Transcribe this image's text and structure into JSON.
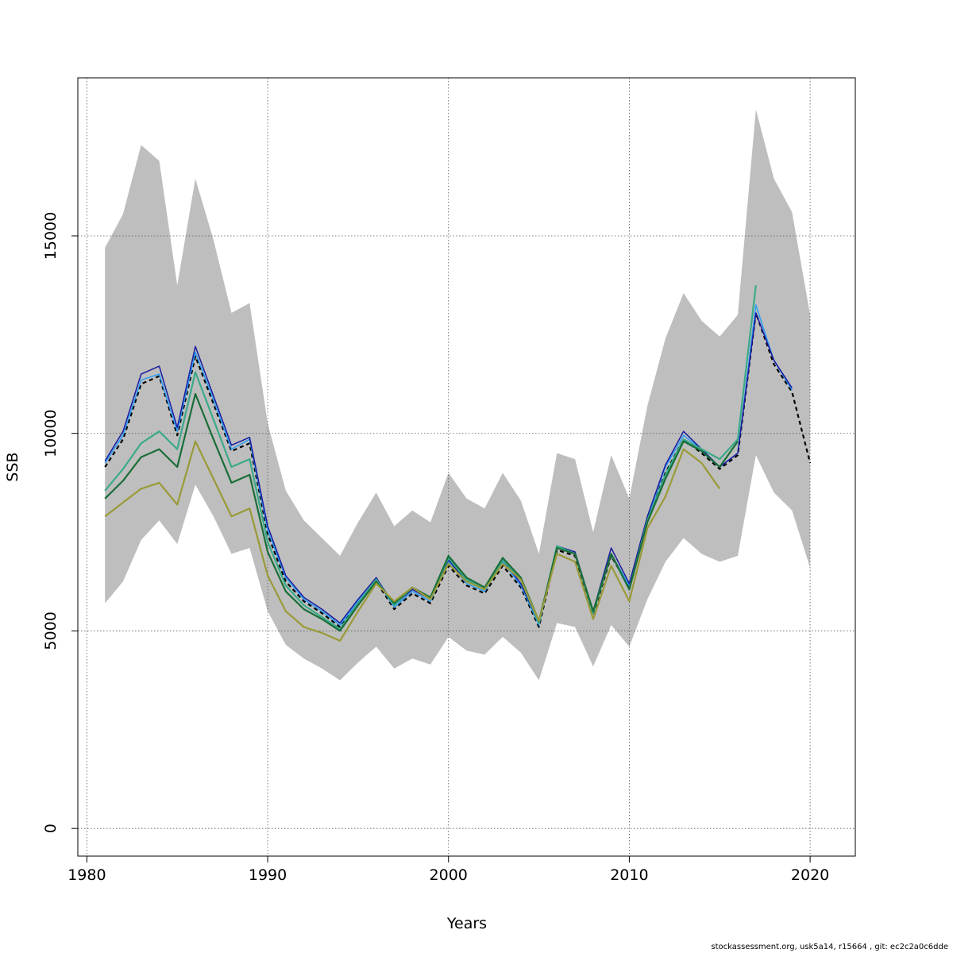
{
  "chart_data": {
    "type": "line",
    "title": "",
    "xlabel": "Years",
    "ylabel": "SSB",
    "xlim": [
      1979.5,
      2022.5
    ],
    "ylim": [
      -700,
      19000
    ],
    "x_ticks": [
      1980,
      1990,
      2000,
      2010,
      2020
    ],
    "y_ticks": [
      0,
      5000,
      10000,
      15000
    ],
    "grid": true,
    "band": {
      "x": [
        1981,
        1982,
        1983,
        1984,
        1985,
        1986,
        1987,
        1988,
        1989,
        1990,
        1991,
        1992,
        1993,
        1994,
        1995,
        1996,
        1997,
        1998,
        1999,
        2000,
        2001,
        2002,
        2003,
        2004,
        2005,
        2006,
        2007,
        2008,
        2009,
        2010,
        2011,
        2012,
        2013,
        2014,
        2015,
        2016,
        2017,
        2018,
        2019,
        2020
      ],
      "upper": [
        14700,
        15550,
        17300,
        16900,
        13750,
        16450,
        14900,
        13050,
        13300,
        10250,
        8550,
        7800,
        7350,
        6900,
        7750,
        8500,
        7650,
        8050,
        7750,
        9000,
        8350,
        8100,
        9000,
        8300,
        6950,
        9500,
        9350,
        7500,
        9450,
        8350,
        10700,
        12400,
        13550,
        12850,
        12450,
        13000,
        18200,
        16450,
        15600,
        13000
      ],
      "lower": [
        5700,
        6250,
        7300,
        7800,
        7200,
        8700,
        7900,
        6950,
        7100,
        5500,
        4650,
        4300,
        4050,
        3750,
        4200,
        4600,
        4050,
        4300,
        4150,
        4850,
        4500,
        4400,
        4850,
        4450,
        3750,
        5200,
        5100,
        4100,
        5150,
        4600,
        5800,
        6750,
        7350,
        6950,
        6750,
        6900,
        9450,
        8500,
        8050,
        6600
      ]
    },
    "series": [
      {
        "color": "#000000",
        "dash": true,
        "width": 2.2,
        "x": [
          1981,
          1982,
          1983,
          1984,
          1985,
          1986,
          1987,
          1988,
          1989,
          1990,
          1991,
          1992,
          1993,
          1994,
          1995,
          1996,
          1997,
          1998,
          1999,
          2000,
          2001,
          2002,
          2003,
          2004,
          2005,
          2006,
          2007,
          2008,
          2009,
          2010,
          2011,
          2012,
          2013,
          2014,
          2015,
          2016,
          2017,
          2018,
          2019,
          2020
        ],
        "y": [
          9150,
          9850,
          11250,
          11450,
          9950,
          11950,
          10750,
          9550,
          9750,
          7450,
          6250,
          5750,
          5450,
          5100,
          5700,
          6250,
          5550,
          5950,
          5700,
          6650,
          6150,
          5950,
          6650,
          6100,
          5100,
          7050,
          6900,
          5400,
          6900,
          6100,
          7800,
          9000,
          9850,
          9500,
          9100,
          9450,
          13050,
          11750,
          11050,
          9250
        ]
      },
      {
        "color": "#2a9df4",
        "dash": false,
        "width": 1.5,
        "x": [
          1981,
          1982,
          1983,
          1984,
          1985,
          1986,
          1987,
          1988,
          1989,
          1990,
          1991,
          1992,
          1993,
          1994,
          1995,
          1996,
          1997,
          1998,
          1999,
          2000,
          2001,
          2002,
          2003,
          2004,
          2005,
          2006,
          2007,
          2008,
          2009,
          2010,
          2011,
          2012,
          2013,
          2014,
          2015,
          2016,
          2017,
          2018,
          2019
        ],
        "y": [
          9250,
          9950,
          11350,
          11500,
          10050,
          12050,
          10850,
          9600,
          9850,
          7550,
          6350,
          5800,
          5500,
          5150,
          5750,
          6300,
          5600,
          6000,
          5750,
          6750,
          6200,
          6000,
          6750,
          6150,
          5150,
          7100,
          6950,
          5450,
          6950,
          6150,
          7850,
          9150,
          9950,
          9600,
          9150,
          9500,
          13250,
          11850,
          11100
        ]
      },
      {
        "color": "#1a1aa0",
        "dash": false,
        "width": 1.5,
        "x": [
          1981,
          1982,
          1983,
          1984,
          1985,
          1986,
          1987,
          1988,
          1989,
          1990,
          1991,
          1992,
          1993,
          1994,
          1995,
          1996,
          1997,
          1998,
          1999,
          2000,
          2001,
          2002,
          2003,
          2004,
          2005,
          2006,
          2007,
          2008,
          2009,
          2010,
          2011,
          2012,
          2013,
          2014,
          2015,
          2016,
          2017,
          2018,
          2019
        ],
        "y": [
          9300,
          10050,
          11500,
          11700,
          10150,
          12200,
          10950,
          9700,
          9900,
          7650,
          6400,
          5850,
          5550,
          5200,
          5800,
          6350,
          5650,
          6050,
          5800,
          6800,
          6250,
          6050,
          6800,
          6200,
          5200,
          7150,
          7000,
          5500,
          7100,
          6200,
          7900,
          9200,
          10050,
          9600,
          9150,
          9500,
          13050,
          11850,
          11150
        ]
      },
      {
        "color": "#3aaa8a",
        "dash": false,
        "width": 2.2,
        "x": [
          1981,
          1982,
          1983,
          1984,
          1985,
          1986,
          1987,
          1988,
          1989,
          1990,
          1991,
          1992,
          1993,
          1994,
          1995,
          1996,
          1997,
          1998,
          1999,
          2000,
          2001,
          2002,
          2003,
          2004,
          2005,
          2006,
          2007,
          2008,
          2009,
          2010,
          2011,
          2012,
          2013,
          2014,
          2015,
          2016,
          2017
        ],
        "y": [
          8550,
          9100,
          9750,
          10050,
          9600,
          11550,
          10350,
          9150,
          9350,
          7250,
          6150,
          5650,
          5350,
          5050,
          5700,
          6300,
          5650,
          6100,
          5800,
          6850,
          6300,
          6050,
          6800,
          6300,
          5200,
          7150,
          6950,
          5450,
          6950,
          6050,
          7800,
          8950,
          9850,
          9600,
          9350,
          9850,
          13750
        ]
      },
      {
        "color": "#1a6e38",
        "dash": false,
        "width": 2.2,
        "x": [
          1981,
          1982,
          1983,
          1984,
          1985,
          1986,
          1987,
          1988,
          1989,
          1990,
          1991,
          1992,
          1993,
          1994,
          1995,
          1996,
          1997,
          1998,
          1999,
          2000,
          2001,
          2002,
          2003,
          2004,
          2005,
          2006,
          2007,
          2008,
          2009,
          2010,
          2011,
          2012,
          2013,
          2014,
          2015,
          2016
        ],
        "y": [
          8350,
          8800,
          9400,
          9600,
          9150,
          11000,
          9850,
          8750,
          8950,
          7000,
          6000,
          5550,
          5300,
          5000,
          5650,
          6250,
          5700,
          6100,
          5850,
          6900,
          6350,
          6100,
          6850,
          6350,
          5250,
          7100,
          6950,
          5500,
          6950,
          6050,
          7750,
          8850,
          9800,
          9550,
          9150,
          9800
        ]
      },
      {
        "color": "#9a9a38",
        "dash": false,
        "width": 2.2,
        "x": [
          1981,
          1982,
          1983,
          1984,
          1985,
          1986,
          1987,
          1988,
          1989,
          1990,
          1991,
          1992,
          1993,
          1994,
          1995,
          1996,
          1997,
          1998,
          1999,
          2000,
          2001,
          2002,
          2003,
          2004,
          2005,
          2006,
          2007,
          2008,
          2009,
          2010,
          2011,
          2012,
          2013,
          2014,
          2015
        ],
        "y": [
          7900,
          8250,
          8600,
          8750,
          8200,
          9800,
          8850,
          7900,
          8100,
          6400,
          5500,
          5100,
          4950,
          4750,
          5500,
          6200,
          5750,
          6100,
          5800,
          6700,
          6250,
          6050,
          6700,
          6300,
          5250,
          6950,
          6750,
          5300,
          6650,
          5750,
          7600,
          8400,
          9600,
          9250,
          8600
        ]
      }
    ]
  },
  "footer_text": "stockassessment.org, usk5a14, r15664 , git: ec2c2a0c6dde"
}
